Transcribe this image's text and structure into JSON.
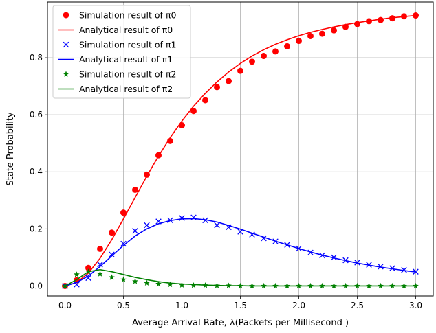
{
  "chart_data": {
    "type": "line",
    "title": "",
    "xlabel": "Average Arrival Rate, λ(Packets per Millisecond )",
    "ylabel": "State Probability",
    "xlim": [
      -0.15,
      3.15
    ],
    "ylim": [
      -0.035,
      0.995
    ],
    "xticks": [
      0.0,
      0.5,
      1.0,
      1.5,
      2.0,
      2.5,
      3.0
    ],
    "xtick_labels": [
      "0.0",
      "0.5",
      "1.0",
      "1.5",
      "2.0",
      "2.5",
      "3.0"
    ],
    "yticks": [
      0.0,
      0.2,
      0.4,
      0.6,
      0.8
    ],
    "ytick_labels": [
      "0.0",
      "0.2",
      "0.4",
      "0.6",
      "0.8"
    ],
    "grid": true,
    "legend": {
      "placement": "top-left"
    },
    "series": [
      {
        "name": "Simulation result of π0",
        "kind": "markers",
        "marker": "circle",
        "color": "#ff0000",
        "x": [
          0.0,
          0.1,
          0.2,
          0.3,
          0.4,
          0.5,
          0.6,
          0.7,
          0.8,
          0.9,
          1.0,
          1.1,
          1.2,
          1.3,
          1.4,
          1.5,
          1.6,
          1.7,
          1.8,
          1.9,
          2.0,
          2.1,
          2.2,
          2.3,
          2.4,
          2.5,
          2.6,
          2.7,
          2.8,
          2.9,
          3.0
        ],
        "y": [
          0.0,
          0.02,
          0.063,
          0.13,
          0.187,
          0.257,
          0.337,
          0.39,
          0.458,
          0.508,
          0.563,
          0.613,
          0.651,
          0.697,
          0.718,
          0.754,
          0.786,
          0.806,
          0.822,
          0.84,
          0.859,
          0.876,
          0.884,
          0.896,
          0.908,
          0.918,
          0.928,
          0.932,
          0.938,
          0.945,
          0.948
        ]
      },
      {
        "name": "Analytical result of π0",
        "kind": "line",
        "color": "#ff0000",
        "x": [
          0.0,
          0.1,
          0.2,
          0.3,
          0.4,
          0.5,
          0.6,
          0.7,
          0.8,
          0.9,
          1.0,
          1.1,
          1.2,
          1.3,
          1.4,
          1.5,
          1.6,
          1.7,
          1.8,
          1.9,
          2.0,
          2.1,
          2.2,
          2.3,
          2.4,
          2.5,
          2.6,
          2.7,
          2.8,
          2.9,
          3.0
        ],
        "y": [
          0.0,
          0.012,
          0.045,
          0.097,
          0.162,
          0.235,
          0.31,
          0.385,
          0.455,
          0.52,
          0.578,
          0.63,
          0.675,
          0.715,
          0.75,
          0.78,
          0.806,
          0.828,
          0.847,
          0.863,
          0.877,
          0.889,
          0.899,
          0.908,
          0.916,
          0.923,
          0.929,
          0.935,
          0.94,
          0.944,
          0.948
        ]
      },
      {
        "name": "Simulation result of π1",
        "kind": "markers",
        "marker": "x",
        "color": "#0000ff",
        "x": [
          0.0,
          0.1,
          0.2,
          0.3,
          0.4,
          0.5,
          0.6,
          0.7,
          0.8,
          0.9,
          1.0,
          1.1,
          1.2,
          1.3,
          1.4,
          1.5,
          1.6,
          1.7,
          1.8,
          1.9,
          2.0,
          2.1,
          2.2,
          2.3,
          2.4,
          2.5,
          2.6,
          2.7,
          2.8,
          2.9,
          3.0
        ],
        "y": [
          0.0,
          0.005,
          0.028,
          0.075,
          0.11,
          0.148,
          0.193,
          0.213,
          0.226,
          0.23,
          0.238,
          0.24,
          0.23,
          0.213,
          0.206,
          0.19,
          0.18,
          0.167,
          0.156,
          0.144,
          0.131,
          0.117,
          0.107,
          0.1,
          0.09,
          0.082,
          0.074,
          0.068,
          0.062,
          0.056,
          0.05
        ]
      },
      {
        "name": "Analytical result of π1",
        "kind": "line",
        "color": "#0000ff",
        "x": [
          0.0,
          0.1,
          0.2,
          0.3,
          0.4,
          0.5,
          0.6,
          0.7,
          0.8,
          0.9,
          1.0,
          1.1,
          1.2,
          1.3,
          1.4,
          1.5,
          1.6,
          1.7,
          1.8,
          1.9,
          2.0,
          2.1,
          2.2,
          2.3,
          2.4,
          2.5,
          2.6,
          2.7,
          2.8,
          2.9,
          3.0
        ],
        "y": [
          0.0,
          0.012,
          0.035,
          0.068,
          0.105,
          0.142,
          0.175,
          0.2,
          0.218,
          0.229,
          0.235,
          0.236,
          0.232,
          0.224,
          0.212,
          0.199,
          0.185,
          0.171,
          0.157,
          0.144,
          0.131,
          0.119,
          0.108,
          0.098,
          0.089,
          0.08,
          0.073,
          0.066,
          0.06,
          0.054,
          0.049
        ]
      },
      {
        "name": "Simulation result of π2",
        "kind": "markers",
        "marker": "star",
        "color": "#008000",
        "x": [
          0.0,
          0.1,
          0.2,
          0.3,
          0.4,
          0.5,
          0.6,
          0.7,
          0.8,
          0.9,
          1.0,
          1.1,
          1.2,
          1.3,
          1.4,
          1.5,
          1.6,
          1.7,
          1.8,
          1.9,
          2.0,
          2.1,
          2.2,
          2.3,
          2.4,
          2.5,
          2.6,
          2.7,
          2.8,
          2.9,
          3.0
        ],
        "y": [
          0.0,
          0.04,
          0.05,
          0.042,
          0.03,
          0.022,
          0.016,
          0.01,
          0.007,
          0.005,
          0.003,
          0.002,
          0.002,
          0.001,
          0.001,
          0.0,
          0.0,
          0.0,
          0.0,
          0.0,
          0.0,
          0.0,
          0.0,
          0.0,
          0.0,
          0.0,
          0.0,
          0.0,
          0.0,
          0.0,
          0.0
        ]
      },
      {
        "name": "Analytical result of π2",
        "kind": "line",
        "color": "#008000",
        "x": [
          0.0,
          0.1,
          0.2,
          0.3,
          0.4,
          0.5,
          0.6,
          0.7,
          0.8,
          0.9,
          1.0,
          1.1,
          1.2,
          1.3,
          1.4,
          1.5,
          1.6,
          1.7,
          1.8,
          1.9,
          2.0,
          2.1,
          2.2,
          2.3,
          2.4,
          2.5,
          2.6,
          2.7,
          2.8,
          2.9,
          3.0
        ],
        "y": [
          0.0,
          0.022,
          0.05,
          0.057,
          0.05,
          0.04,
          0.03,
          0.022,
          0.015,
          0.01,
          0.007,
          0.005,
          0.003,
          0.002,
          0.001,
          0.001,
          0.0,
          0.0,
          0.0,
          0.0,
          0.0,
          0.0,
          0.0,
          0.0,
          0.0,
          0.0,
          0.0,
          0.0,
          0.0,
          0.0,
          0.0
        ]
      }
    ]
  }
}
